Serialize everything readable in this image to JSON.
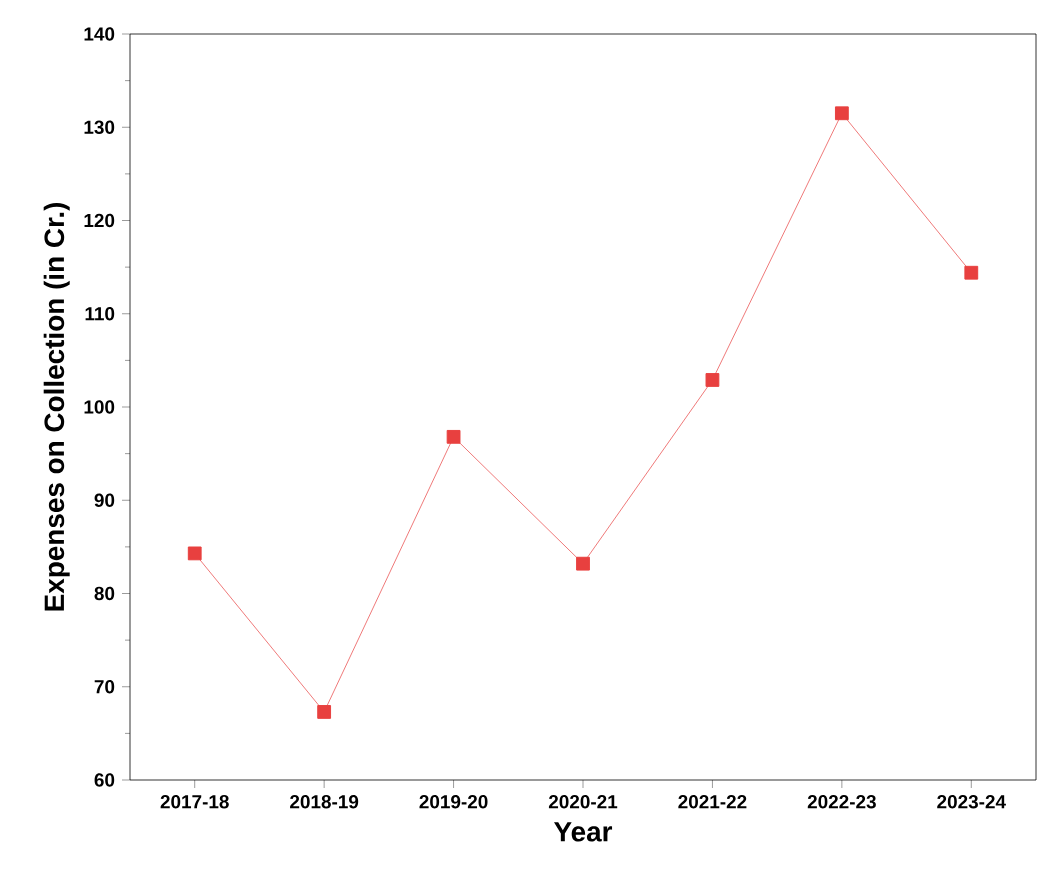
{
  "chart_data": {
    "type": "line",
    "xlabel": "Year",
    "ylabel": "Expenses on Collection (in Cr.)",
    "categories": [
      "2017-18",
      "2018-19",
      "2019-20",
      "2020-21",
      "2021-22",
      "2022-23",
      "2023-24"
    ],
    "series": [
      {
        "color": "#e8403f",
        "values": [
          84.3,
          67.3,
          96.8,
          83.2,
          102.9,
          131.5,
          114.4
        ]
      }
    ],
    "marker": "square",
    "line_style": "solid",
    "ylim": [
      60,
      140
    ],
    "yticks": [
      60,
      70,
      80,
      90,
      100,
      110,
      120,
      130,
      140
    ]
  }
}
